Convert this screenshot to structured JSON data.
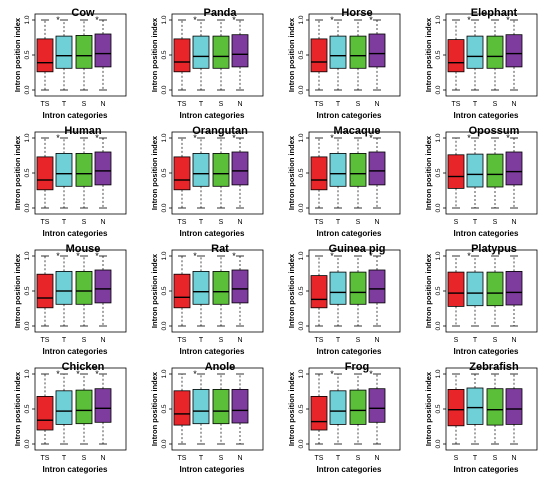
{
  "colors": {
    "TS": "#e8262a",
    "T": "#6fd0d8",
    "S": "#5cbf3a",
    "N": "#7e3d9e"
  },
  "common": {
    "ylabel": "Intron position index",
    "xlabel": "Intron categories",
    "yticks": [
      "0.0",
      "0.5",
      "1.0"
    ]
  },
  "chart_data": [
    {
      "type": "box",
      "title": "Cow",
      "categories": [
        "TS",
        "T",
        "S",
        "N"
      ],
      "ylim": [
        0,
        1
      ],
      "ylabel": "Intron position index",
      "xlabel": "Intron categories",
      "boxes": [
        {
          "q1": 0.26,
          "median": 0.39,
          "q3": 0.73
        },
        {
          "q1": 0.31,
          "median": 0.49,
          "q3": 0.77
        },
        {
          "q1": 0.31,
          "median": 0.49,
          "q3": 0.78
        },
        {
          "q1": 0.33,
          "median": 0.52,
          "q3": 0.8
        }
      ],
      "markers": [
        "",
        "*",
        "",
        "*"
      ]
    },
    {
      "type": "box",
      "title": "Panda",
      "categories": [
        "TS",
        "T",
        "S",
        "N"
      ],
      "ylim": [
        0,
        1
      ],
      "ylabel": "Intron position index",
      "xlabel": "Intron categories",
      "boxes": [
        {
          "q1": 0.26,
          "median": 0.4,
          "q3": 0.73
        },
        {
          "q1": 0.31,
          "median": 0.48,
          "q3": 0.77
        },
        {
          "q1": 0.31,
          "median": 0.48,
          "q3": 0.77
        },
        {
          "q1": 0.33,
          "median": 0.51,
          "q3": 0.79
        }
      ],
      "markers": [
        "",
        "*",
        "",
        "*"
      ]
    },
    {
      "type": "box",
      "title": "Horse",
      "categories": [
        "TS",
        "T",
        "S",
        "N"
      ],
      "ylim": [
        0,
        1
      ],
      "ylabel": "Intron position index",
      "xlabel": "Intron categories",
      "boxes": [
        {
          "q1": 0.26,
          "median": 0.4,
          "q3": 0.73
        },
        {
          "q1": 0.31,
          "median": 0.49,
          "q3": 0.77
        },
        {
          "q1": 0.31,
          "median": 0.49,
          "q3": 0.77
        },
        {
          "q1": 0.33,
          "median": 0.52,
          "q3": 0.8
        }
      ],
      "markers": [
        "",
        "*",
        "",
        "*"
      ]
    },
    {
      "type": "box",
      "title": "Elephant",
      "categories": [
        "TS",
        "T",
        "S",
        "N"
      ],
      "ylim": [
        0,
        1
      ],
      "ylabel": "Intron position index",
      "xlabel": "Intron categories",
      "boxes": [
        {
          "q1": 0.26,
          "median": 0.39,
          "q3": 0.72
        },
        {
          "q1": 0.31,
          "median": 0.48,
          "q3": 0.77
        },
        {
          "q1": 0.31,
          "median": 0.48,
          "q3": 0.77
        },
        {
          "q1": 0.33,
          "median": 0.52,
          "q3": 0.79
        }
      ],
      "markers": [
        "",
        "*",
        "",
        "*"
      ]
    },
    {
      "type": "box",
      "title": "Human",
      "categories": [
        "TS",
        "T",
        "S",
        "N"
      ],
      "ylim": [
        0,
        1
      ],
      "ylabel": "Intron position index",
      "xlabel": "Intron categories",
      "boxes": [
        {
          "q1": 0.26,
          "median": 0.4,
          "q3": 0.73
        },
        {
          "q1": 0.31,
          "median": 0.49,
          "q3": 0.78
        },
        {
          "q1": 0.31,
          "median": 0.49,
          "q3": 0.78
        },
        {
          "q1": 0.33,
          "median": 0.53,
          "q3": 0.8
        }
      ],
      "markers": [
        "",
        "*",
        "",
        "*"
      ]
    },
    {
      "type": "box",
      "title": "Orangutan",
      "categories": [
        "TS",
        "T",
        "S",
        "N"
      ],
      "ylim": [
        0,
        1
      ],
      "ylabel": "Intron position index",
      "xlabel": "Intron categories",
      "boxes": [
        {
          "q1": 0.26,
          "median": 0.4,
          "q3": 0.73
        },
        {
          "q1": 0.31,
          "median": 0.49,
          "q3": 0.78
        },
        {
          "q1": 0.31,
          "median": 0.49,
          "q3": 0.78
        },
        {
          "q1": 0.33,
          "median": 0.53,
          "q3": 0.8
        }
      ],
      "markers": [
        "",
        "*",
        "",
        "*"
      ]
    },
    {
      "type": "box",
      "title": "Macaque",
      "categories": [
        "TS",
        "T",
        "S",
        "N"
      ],
      "ylim": [
        0,
        1
      ],
      "ylabel": "Intron position index",
      "xlabel": "Intron categories",
      "boxes": [
        {
          "q1": 0.26,
          "median": 0.4,
          "q3": 0.73
        },
        {
          "q1": 0.31,
          "median": 0.49,
          "q3": 0.78
        },
        {
          "q1": 0.31,
          "median": 0.49,
          "q3": 0.78
        },
        {
          "q1": 0.33,
          "median": 0.53,
          "q3": 0.8
        }
      ],
      "markers": [
        "",
        "*",
        "",
        "*"
      ]
    },
    {
      "type": "box",
      "title": "Opossum",
      "categories": [
        "S",
        "T",
        "S",
        "N"
      ],
      "ylim": [
        0,
        1
      ],
      "ylabel": "Intron position index",
      "xlabel": "Intron categories",
      "boxes": [
        {
          "q1": 0.28,
          "median": 0.45,
          "q3": 0.76
        },
        {
          "q1": 0.3,
          "median": 0.48,
          "q3": 0.77
        },
        {
          "q1": 0.3,
          "median": 0.48,
          "q3": 0.77
        },
        {
          "q1": 0.33,
          "median": 0.52,
          "q3": 0.8
        }
      ],
      "markers": [
        "",
        "*",
        "",
        "*"
      ]
    },
    {
      "type": "box",
      "title": "Mouse",
      "categories": [
        "TS",
        "T",
        "S",
        "N"
      ],
      "ylim": [
        0,
        1
      ],
      "ylabel": "Intron position index",
      "xlabel": "Intron categories",
      "boxes": [
        {
          "q1": 0.26,
          "median": 0.4,
          "q3": 0.74
        },
        {
          "q1": 0.31,
          "median": 0.5,
          "q3": 0.78
        },
        {
          "q1": 0.31,
          "median": 0.5,
          "q3": 0.78
        },
        {
          "q1": 0.33,
          "median": 0.53,
          "q3": 0.8
        }
      ],
      "markers": [
        "",
        "*",
        "*",
        "*"
      ]
    },
    {
      "type": "box",
      "title": "Rat",
      "categories": [
        "TS",
        "T",
        "S",
        "N"
      ],
      "ylim": [
        0,
        1
      ],
      "ylabel": "Intron position index",
      "xlabel": "Intron categories",
      "boxes": [
        {
          "q1": 0.26,
          "median": 0.41,
          "q3": 0.74
        },
        {
          "q1": 0.31,
          "median": 0.49,
          "q3": 0.78
        },
        {
          "q1": 0.31,
          "median": 0.49,
          "q3": 0.78
        },
        {
          "q1": 0.33,
          "median": 0.53,
          "q3": 0.8
        }
      ],
      "markers": [
        "",
        "*",
        "",
        "*"
      ]
    },
    {
      "type": "box",
      "title": "Guinea pig",
      "categories": [
        "TS",
        "T",
        "S",
        "N"
      ],
      "ylim": [
        0,
        1
      ],
      "ylabel": "Intron position index",
      "xlabel": "Intron categories",
      "boxes": [
        {
          "q1": 0.26,
          "median": 0.38,
          "q3": 0.72
        },
        {
          "q1": 0.31,
          "median": 0.48,
          "q3": 0.77
        },
        {
          "q1": 0.31,
          "median": 0.48,
          "q3": 0.77
        },
        {
          "q1": 0.33,
          "median": 0.53,
          "q3": 0.8
        }
      ],
      "markers": [
        "",
        "*",
        "",
        "*"
      ]
    },
    {
      "type": "box",
      "title": "Platypus",
      "categories": [
        "S",
        "T",
        "S",
        "N"
      ],
      "ylim": [
        0,
        1
      ],
      "ylabel": "Intron position index",
      "xlabel": "Intron categories",
      "boxes": [
        {
          "q1": 0.28,
          "median": 0.47,
          "q3": 0.77
        },
        {
          "q1": 0.29,
          "median": 0.47,
          "q3": 0.77
        },
        {
          "q1": 0.29,
          "median": 0.47,
          "q3": 0.77
        },
        {
          "q1": 0.3,
          "median": 0.48,
          "q3": 0.78
        }
      ],
      "markers": [
        "",
        "*",
        "",
        ""
      ]
    },
    {
      "type": "box",
      "title": "Chicken",
      "categories": [
        "TS",
        "T",
        "S",
        "N"
      ],
      "ylim": [
        0,
        1
      ],
      "ylabel": "Intron position index",
      "xlabel": "Intron categories",
      "boxes": [
        {
          "q1": 0.2,
          "median": 0.34,
          "q3": 0.68
        },
        {
          "q1": 0.28,
          "median": 0.47,
          "q3": 0.76
        },
        {
          "q1": 0.29,
          "median": 0.48,
          "q3": 0.77
        },
        {
          "q1": 0.31,
          "median": 0.51,
          "q3": 0.79
        }
      ],
      "markers": [
        "",
        "*",
        "*",
        "*"
      ]
    },
    {
      "type": "box",
      "title": "Anole",
      "categories": [
        "TS",
        "T",
        "S",
        "N"
      ],
      "ylim": [
        0,
        1
      ],
      "ylabel": "Intron position index",
      "xlabel": "Intron categories",
      "boxes": [
        {
          "q1": 0.27,
          "median": 0.43,
          "q3": 0.76
        },
        {
          "q1": 0.29,
          "median": 0.47,
          "q3": 0.78
        },
        {
          "q1": 0.29,
          "median": 0.47,
          "q3": 0.78
        },
        {
          "q1": 0.3,
          "median": 0.48,
          "q3": 0.78
        }
      ],
      "markers": [
        "",
        "*",
        "",
        ""
      ]
    },
    {
      "type": "box",
      "title": "Frog",
      "categories": [
        "TS",
        "T",
        "S",
        "N"
      ],
      "ylim": [
        0,
        1
      ],
      "ylabel": "Intron position index",
      "xlabel": "Intron categories",
      "boxes": [
        {
          "q1": 0.2,
          "median": 0.32,
          "q3": 0.68
        },
        {
          "q1": 0.28,
          "median": 0.47,
          "q3": 0.76
        },
        {
          "q1": 0.28,
          "median": 0.48,
          "q3": 0.77
        },
        {
          "q1": 0.31,
          "median": 0.51,
          "q3": 0.79
        }
      ],
      "markers": [
        "",
        "*",
        "",
        "*"
      ]
    },
    {
      "type": "box",
      "title": "Zebrafish",
      "categories": [
        "S",
        "T",
        "S",
        "N"
      ],
      "ylim": [
        0,
        1
      ],
      "ylabel": "Intron position index",
      "xlabel": "Intron categories",
      "boxes": [
        {
          "q1": 0.26,
          "median": 0.49,
          "q3": 0.78
        },
        {
          "q1": 0.28,
          "median": 0.52,
          "q3": 0.8
        },
        {
          "q1": 0.27,
          "median": 0.49,
          "q3": 0.79
        },
        {
          "q1": 0.28,
          "median": 0.5,
          "q3": 0.79
        }
      ],
      "markers": [
        "",
        "",
        "",
        ""
      ]
    }
  ]
}
